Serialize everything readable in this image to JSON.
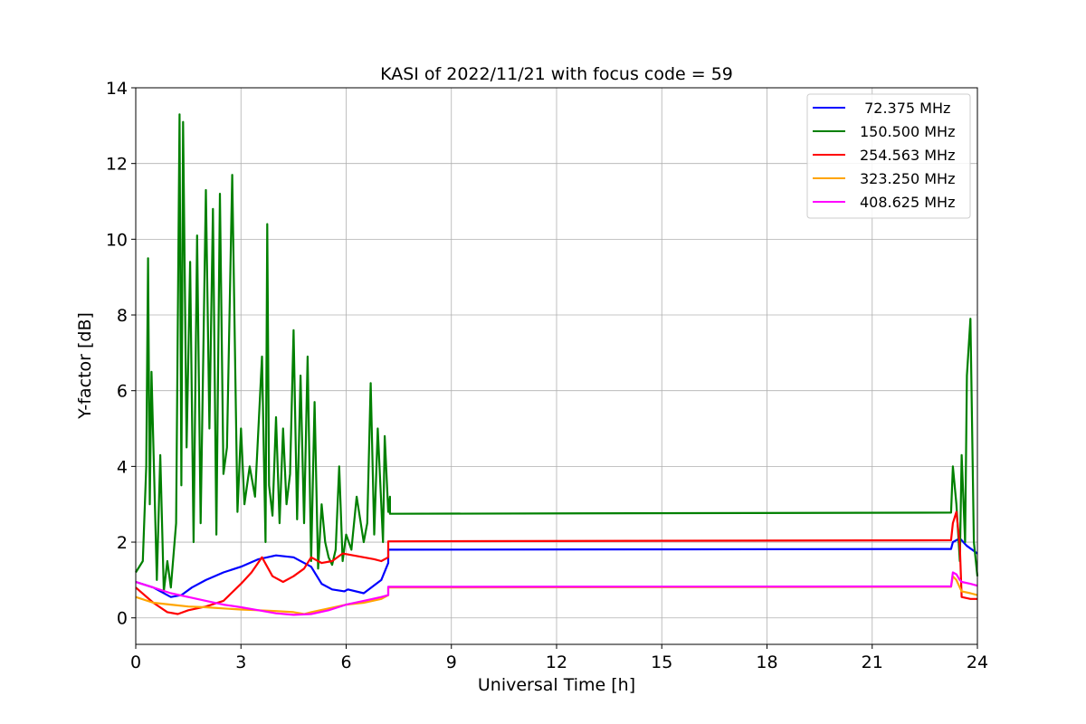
{
  "chart_data": {
    "type": "line",
    "title": "KASI of 2022/11/21 with focus code = 59",
    "xlabel": "Universal Time [h]",
    "ylabel": "Y-factor [dB]",
    "xlim": [
      0,
      24
    ],
    "ylim": [
      -0.7,
      14
    ],
    "xticks": [
      0,
      3,
      6,
      9,
      12,
      15,
      18,
      21,
      24
    ],
    "yticks": [
      0,
      2,
      4,
      6,
      8,
      10,
      12,
      14
    ],
    "grid": true,
    "legend_position": "top-right",
    "series": [
      {
        "name": " 72.375 MHz",
        "color": "#0000ff",
        "x": [
          0.0,
          0.5,
          1.0,
          1.3,
          1.6,
          2.0,
          2.5,
          3.0,
          3.5,
          4.0,
          4.5,
          5.0,
          5.3,
          5.6,
          5.95,
          6.05,
          6.5,
          7.0,
          7.2,
          7.2,
          23.25,
          23.3,
          23.5,
          23.7,
          24.0
        ],
        "y": [
          0.95,
          0.8,
          0.55,
          0.6,
          0.8,
          1.0,
          1.2,
          1.35,
          1.55,
          1.65,
          1.6,
          1.35,
          0.9,
          0.75,
          0.7,
          0.75,
          0.65,
          1.0,
          1.45,
          1.8,
          1.82,
          2.0,
          2.1,
          1.9,
          1.7
        ]
      },
      {
        "name": "150.500 MHz",
        "color": "#008000",
        "x": [
          0.0,
          0.2,
          0.3,
          0.35,
          0.4,
          0.45,
          0.6,
          0.7,
          0.8,
          0.9,
          1.0,
          1.15,
          1.25,
          1.3,
          1.35,
          1.45,
          1.55,
          1.65,
          1.75,
          1.85,
          2.0,
          2.1,
          2.2,
          2.3,
          2.4,
          2.5,
          2.6,
          2.75,
          2.9,
          3.0,
          3.1,
          3.25,
          3.4,
          3.6,
          3.7,
          3.75,
          3.8,
          3.9,
          4.0,
          4.1,
          4.2,
          4.3,
          4.4,
          4.5,
          4.6,
          4.7,
          4.8,
          4.9,
          5.0,
          5.1,
          5.2,
          5.3,
          5.4,
          5.5,
          5.6,
          5.7,
          5.8,
          5.9,
          6.0,
          6.15,
          6.3,
          6.5,
          6.6,
          6.7,
          6.8,
          6.9,
          7.0,
          7.05,
          7.1,
          7.2,
          7.25,
          7.25,
          23.25,
          23.3,
          23.4,
          23.5,
          23.55,
          23.65,
          23.7,
          23.8,
          23.9,
          24.0
        ],
        "y": [
          1.2,
          1.5,
          4.0,
          9.5,
          3.0,
          6.5,
          1.0,
          4.3,
          0.7,
          1.5,
          0.8,
          2.5,
          13.3,
          3.5,
          13.1,
          4.5,
          9.4,
          2.0,
          10.1,
          2.5,
          11.3,
          5.0,
          10.8,
          2.2,
          11.2,
          3.8,
          4.5,
          11.7,
          2.8,
          5.0,
          3.0,
          4.0,
          3.2,
          6.9,
          2.0,
          10.4,
          3.5,
          2.7,
          5.3,
          2.5,
          5.0,
          3.0,
          3.8,
          7.6,
          2.6,
          6.4,
          2.5,
          6.9,
          1.5,
          5.7,
          1.3,
          3.0,
          2.0,
          1.6,
          1.4,
          1.8,
          4.0,
          1.5,
          2.2,
          1.8,
          3.2,
          2.0,
          2.5,
          6.2,
          2.2,
          5.0,
          3.0,
          2.0,
          4.8,
          2.8,
          3.2,
          2.75,
          2.78,
          4.0,
          3.0,
          1.5,
          4.3,
          2.0,
          6.4,
          7.9,
          2.0,
          1.1
        ]
      },
      {
        "name": "254.563 MHz",
        "color": "#ff0000",
        "x": [
          0.0,
          0.5,
          0.9,
          1.2,
          1.5,
          2.0,
          2.5,
          3.0,
          3.3,
          3.6,
          3.9,
          4.2,
          4.5,
          4.8,
          5.0,
          5.3,
          5.6,
          5.9,
          6.2,
          6.5,
          6.8,
          7.0,
          7.2,
          7.2,
          23.25,
          23.3,
          23.4,
          23.5,
          23.55,
          23.8,
          24.0
        ],
        "y": [
          0.8,
          0.4,
          0.15,
          0.1,
          0.2,
          0.3,
          0.45,
          0.9,
          1.2,
          1.6,
          1.1,
          0.95,
          1.1,
          1.3,
          1.6,
          1.45,
          1.5,
          1.7,
          1.65,
          1.6,
          1.55,
          1.5,
          1.6,
          2.02,
          2.05,
          2.5,
          2.8,
          1.9,
          0.55,
          0.5,
          0.5
        ]
      },
      {
        "name": "323.250 MHz",
        "color": "#ffa500",
        "x": [
          0.0,
          0.5,
          1.0,
          1.5,
          2.0,
          2.5,
          3.0,
          3.5,
          4.0,
          4.5,
          4.8,
          5.0,
          5.5,
          6.0,
          6.5,
          7.0,
          7.2,
          7.2,
          23.25,
          23.3,
          23.4,
          23.5,
          23.55,
          23.8,
          24.0
        ],
        "y": [
          0.55,
          0.4,
          0.35,
          0.3,
          0.28,
          0.25,
          0.22,
          0.2,
          0.18,
          0.15,
          0.1,
          0.15,
          0.25,
          0.35,
          0.4,
          0.5,
          0.6,
          0.8,
          0.82,
          1.1,
          1.0,
          0.8,
          0.7,
          0.65,
          0.6
        ]
      },
      {
        "name": "408.625 MHz",
        "color": "#ff00ff",
        "x": [
          0.0,
          0.5,
          1.0,
          1.5,
          2.0,
          2.5,
          3.0,
          3.5,
          4.0,
          4.5,
          5.0,
          5.5,
          6.0,
          6.5,
          7.0,
          7.2,
          7.2,
          23.25,
          23.3,
          23.4,
          23.5,
          23.55,
          23.8,
          24.0
        ],
        "y": [
          0.95,
          0.8,
          0.65,
          0.55,
          0.45,
          0.35,
          0.28,
          0.2,
          0.12,
          0.08,
          0.1,
          0.2,
          0.35,
          0.45,
          0.55,
          0.6,
          0.82,
          0.83,
          1.2,
          1.15,
          1.0,
          0.95,
          0.9,
          0.85
        ]
      }
    ]
  }
}
